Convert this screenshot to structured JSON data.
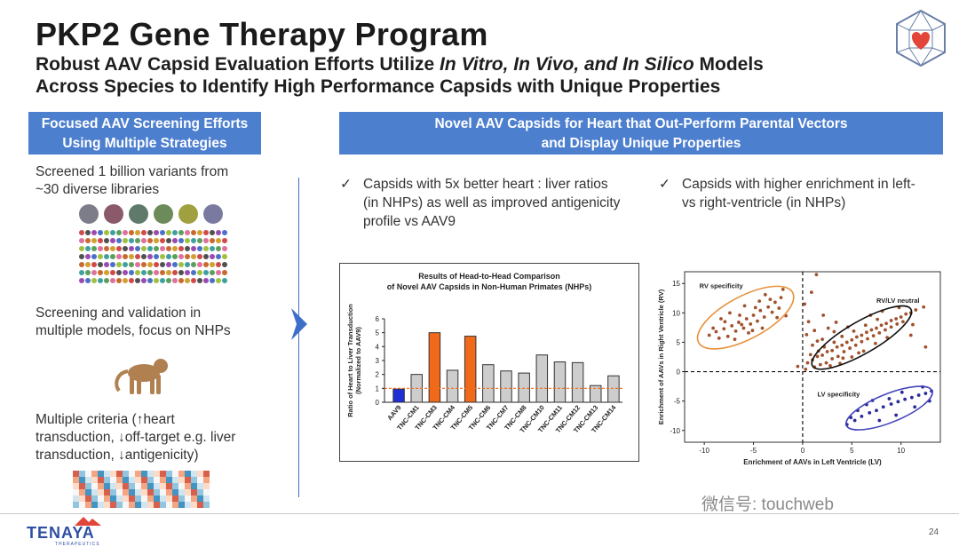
{
  "slide": {
    "title": "PKP2 Gene Therapy Program",
    "subtitle_line1_a": "Robust AAV Capsid Evaluation Efforts Utilize ",
    "subtitle_line1_italic": "In Vitro, In Vivo, and In Silico",
    "subtitle_line1_b": " Models",
    "subtitle_line2": "Across Species to Identify High Performance Capsids with Unique Properties",
    "page_number": "24"
  },
  "left_panel": {
    "header_line1": "Focused AAV Screening Efforts",
    "header_line2": "Using Multiple Strategies",
    "item1_line1": "Screened 1 billion variants from",
    "item1_line2": "~30 diverse libraries",
    "item2_line1": "Screening and validation in",
    "item2_line2": "multiple models, focus on NHPs",
    "item3_line1": "Multiple criteria (↑heart",
    "item3_line2": "transduction, ↓off-target e.g. liver",
    "item3_line3": "transduction, ↓antigenicity)"
  },
  "right_panel": {
    "header_line1": "Novel AAV Capsids for Heart that Out-Perform Parental Vectors",
    "header_line2": "and Display Unique Properties",
    "check_mark": "✓",
    "bullet1_line1": "Capsids with 5x better heart : liver ratios",
    "bullet1_line2": "(in NHPs) as well as improved antigenicity",
    "bullet1_line3": "profile vs AAV9",
    "bullet2_line1": "Capsids with higher enrichment in left-",
    "bullet2_line2": "vs right-ventricle (in NHPs)"
  },
  "footer": {
    "company": "TENAYA",
    "company_sub": "THERAPEUTICS",
    "watermark": "微信号: touchweb"
  },
  "colors": {
    "header_blue": "#4d7fcf",
    "bar_blue": "#1f2fd6",
    "bar_orange": "#f06a1a",
    "bar_gray": "#cdcdcd",
    "dot_brown": "#a0522d",
    "ellipse_orange": "#e8903a",
    "ellipse_black": "#111111",
    "ellipse_blue": "#4444bb",
    "lv_dot_blue": "#2a2a9a"
  },
  "chart_data": [
    {
      "type": "bar",
      "title_line1": "Results of Head-to-Head Comparison",
      "title_line2": "of Novel AAV Capsids in Non-Human Primates (NHPs)",
      "ylabel_line1": "Ratio of Heart to Liver Transduction",
      "ylabel_line2": "(Normalized to AAV9)",
      "categories": [
        "AAV9",
        "TNC-CM1",
        "TNC-CM3",
        "TNC-CM4",
        "TNC-CM5",
        "TNC-CM6",
        "TNC-CM7",
        "TNC-CM8",
        "TNC-CM10",
        "TNC-CM11",
        "TNC-CM12",
        "TNC-CM13",
        "TNC-CM14"
      ],
      "values": [
        0.95,
        2.0,
        5.0,
        2.3,
        4.75,
        2.7,
        2.25,
        2.1,
        3.4,
        2.9,
        2.85,
        1.2,
        1.9
      ],
      "bar_colors": [
        "blue",
        "gray",
        "orange",
        "gray",
        "orange",
        "gray",
        "gray",
        "gray",
        "gray",
        "gray",
        "gray",
        "gray",
        "gray"
      ],
      "yticks": [
        "0",
        "1",
        "2",
        "3",
        "4",
        "5",
        "6"
      ],
      "ylim": [
        0,
        6
      ],
      "reference_line": 1
    },
    {
      "type": "scatter",
      "xlabel": "Enrichment of AAVs in Left Ventricle (LV)",
      "ylabel": "Enrichment of AAVs in Right Ventricle (RV)",
      "xlim": [
        -12,
        14
      ],
      "ylim": [
        -12,
        17
      ],
      "xticks": [
        "-10",
        "-5",
        "0",
        "5",
        "10"
      ],
      "yticks": [
        "15",
        "10",
        "5",
        "0",
        "-5",
        "-10"
      ],
      "labels": {
        "rv": "RV specificity",
        "neutral": "RV/LV neutral",
        "lv": "LV specificity"
      },
      "clusters": {
        "rv_specificity": [
          [
            -9.5,
            6.2
          ],
          [
            -8.8,
            6.8
          ],
          [
            -8.0,
            7.3
          ],
          [
            -7.2,
            7.8
          ],
          [
            -6.5,
            8.4
          ],
          [
            -5.7,
            9.0
          ],
          [
            -5.0,
            9.6
          ],
          [
            -4.3,
            10.4
          ],
          [
            -3.5,
            11.0
          ],
          [
            -2.8,
            11.8
          ],
          [
            -2.2,
            12.6
          ],
          [
            -8.5,
            5.7
          ],
          [
            -7.6,
            6.0
          ],
          [
            -6.8,
            6.9
          ],
          [
            -6.0,
            7.4
          ],
          [
            -5.3,
            8.1
          ],
          [
            -4.6,
            8.6
          ],
          [
            -3.9,
            9.3
          ],
          [
            -3.1,
            10.1
          ],
          [
            -2.4,
            10.8
          ],
          [
            -7.9,
            8.5
          ],
          [
            -6.4,
            9.6
          ],
          [
            -4.8,
            10.9
          ],
          [
            -3.3,
            12.3
          ],
          [
            -9.1,
            7.4
          ],
          [
            -5.5,
            6.6
          ],
          [
            -4.1,
            7.4
          ],
          [
            -2.6,
            9.2
          ],
          [
            -6.9,
            5.5
          ],
          [
            -8.3,
            9.0
          ],
          [
            -5.9,
            11.2
          ],
          [
            -3.8,
            13.1
          ],
          [
            -2.0,
            14.0
          ],
          [
            -1.7,
            9.5
          ],
          [
            -7.4,
            10.0
          ],
          [
            -4.4,
            12.0
          ],
          [
            -6.2,
            8.0
          ],
          [
            -5.1,
            7.0
          ]
        ],
        "neutral": [
          [
            0.5,
            1.5
          ],
          [
            1.0,
            2.0
          ],
          [
            1.5,
            2.6
          ],
          [
            2.0,
            2.8
          ],
          [
            2.5,
            3.4
          ],
          [
            3.0,
            3.6
          ],
          [
            3.5,
            4.2
          ],
          [
            4.0,
            4.5
          ],
          [
            4.5,
            5.0
          ],
          [
            5.0,
            5.4
          ],
          [
            5.5,
            5.9
          ],
          [
            6.0,
            6.2
          ],
          [
            6.5,
            6.7
          ],
          [
            7.0,
            7.1
          ],
          [
            7.5,
            7.4
          ],
          [
            8.0,
            7.9
          ],
          [
            8.5,
            8.2
          ],
          [
            9.0,
            8.7
          ],
          [
            9.5,
            9.0
          ],
          [
            10.0,
            9.3
          ],
          [
            10.5,
            9.8
          ],
          [
            11.0,
            10.0
          ],
          [
            11.5,
            10.5
          ],
          [
            1.2,
            0.8
          ],
          [
            1.8,
            1.2
          ],
          [
            2.4,
            1.5
          ],
          [
            3.0,
            2.2
          ],
          [
            3.6,
            2.6
          ],
          [
            4.2,
            3.4
          ],
          [
            4.8,
            4.0
          ],
          [
            5.4,
            4.5
          ],
          [
            6.0,
            5.1
          ],
          [
            6.6,
            5.6
          ],
          [
            7.2,
            6.1
          ],
          [
            7.8,
            6.6
          ],
          [
            8.4,
            7.1
          ],
          [
            9.0,
            7.6
          ],
          [
            9.6,
            8.1
          ],
          [
            10.2,
            8.5
          ],
          [
            0.8,
            2.9
          ],
          [
            1.6,
            3.5
          ],
          [
            2.2,
            4.2
          ],
          [
            3.2,
            5.0
          ],
          [
            4.0,
            6.0
          ],
          [
            5.2,
            6.9
          ],
          [
            6.4,
            7.9
          ],
          [
            7.6,
            8.9
          ],
          [
            2.8,
            1.0
          ],
          [
            3.8,
            1.4
          ],
          [
            5.0,
            2.5
          ],
          [
            6.2,
            3.5
          ],
          [
            7.4,
            4.8
          ],
          [
            8.6,
            5.8
          ],
          [
            1.0,
            4.5
          ],
          [
            2.0,
            5.5
          ],
          [
            3.2,
            6.8
          ],
          [
            4.6,
            7.6
          ],
          [
            0.3,
            0.4
          ],
          [
            0.6,
            8.5
          ],
          [
            1.2,
            7.0
          ],
          [
            0.2,
            11.5
          ],
          [
            0.9,
            13.5
          ],
          [
            1.4,
            16.5
          ],
          [
            -0.5,
            0.9
          ],
          [
            4.1,
            2.3
          ],
          [
            5.7,
            3.2
          ],
          [
            9.8,
            10.9
          ],
          [
            11.2,
            8.0
          ],
          [
            12.3,
            11.0
          ],
          [
            3.4,
            8.4
          ],
          [
            2.1,
            9.6
          ],
          [
            0.4,
            6.3
          ],
          [
            1.5,
            5.2
          ],
          [
            2.6,
            7.4
          ],
          [
            6.9,
            9.6
          ],
          [
            8.1,
            10.3
          ],
          [
            12.5,
            4.2
          ],
          [
            11.0,
            6.2
          ]
        ],
        "lv_specificity": [
          [
            4.5,
            -9.0
          ],
          [
            5.3,
            -8.3
          ],
          [
            6.0,
            -7.6
          ],
          [
            6.8,
            -7.0
          ],
          [
            7.5,
            -6.6
          ],
          [
            8.2,
            -6.0
          ],
          [
            9.0,
            -5.5
          ],
          [
            9.7,
            -5.1
          ],
          [
            10.4,
            -4.7
          ],
          [
            11.1,
            -4.4
          ],
          [
            11.8,
            -4.0
          ],
          [
            12.5,
            -3.7
          ],
          [
            13.1,
            -3.3
          ],
          [
            7.8,
            -8.3
          ],
          [
            9.5,
            -7.4
          ],
          [
            11.4,
            -6.0
          ],
          [
            12.9,
            -5.0
          ],
          [
            6.5,
            -5.6
          ],
          [
            10.1,
            -3.5
          ],
          [
            5.6,
            -6.6
          ],
          [
            8.8,
            -4.6
          ],
          [
            12.2,
            -2.6
          ],
          [
            4.9,
            -7.8
          ],
          [
            7.1,
            -4.9
          ]
        ]
      }
    }
  ]
}
